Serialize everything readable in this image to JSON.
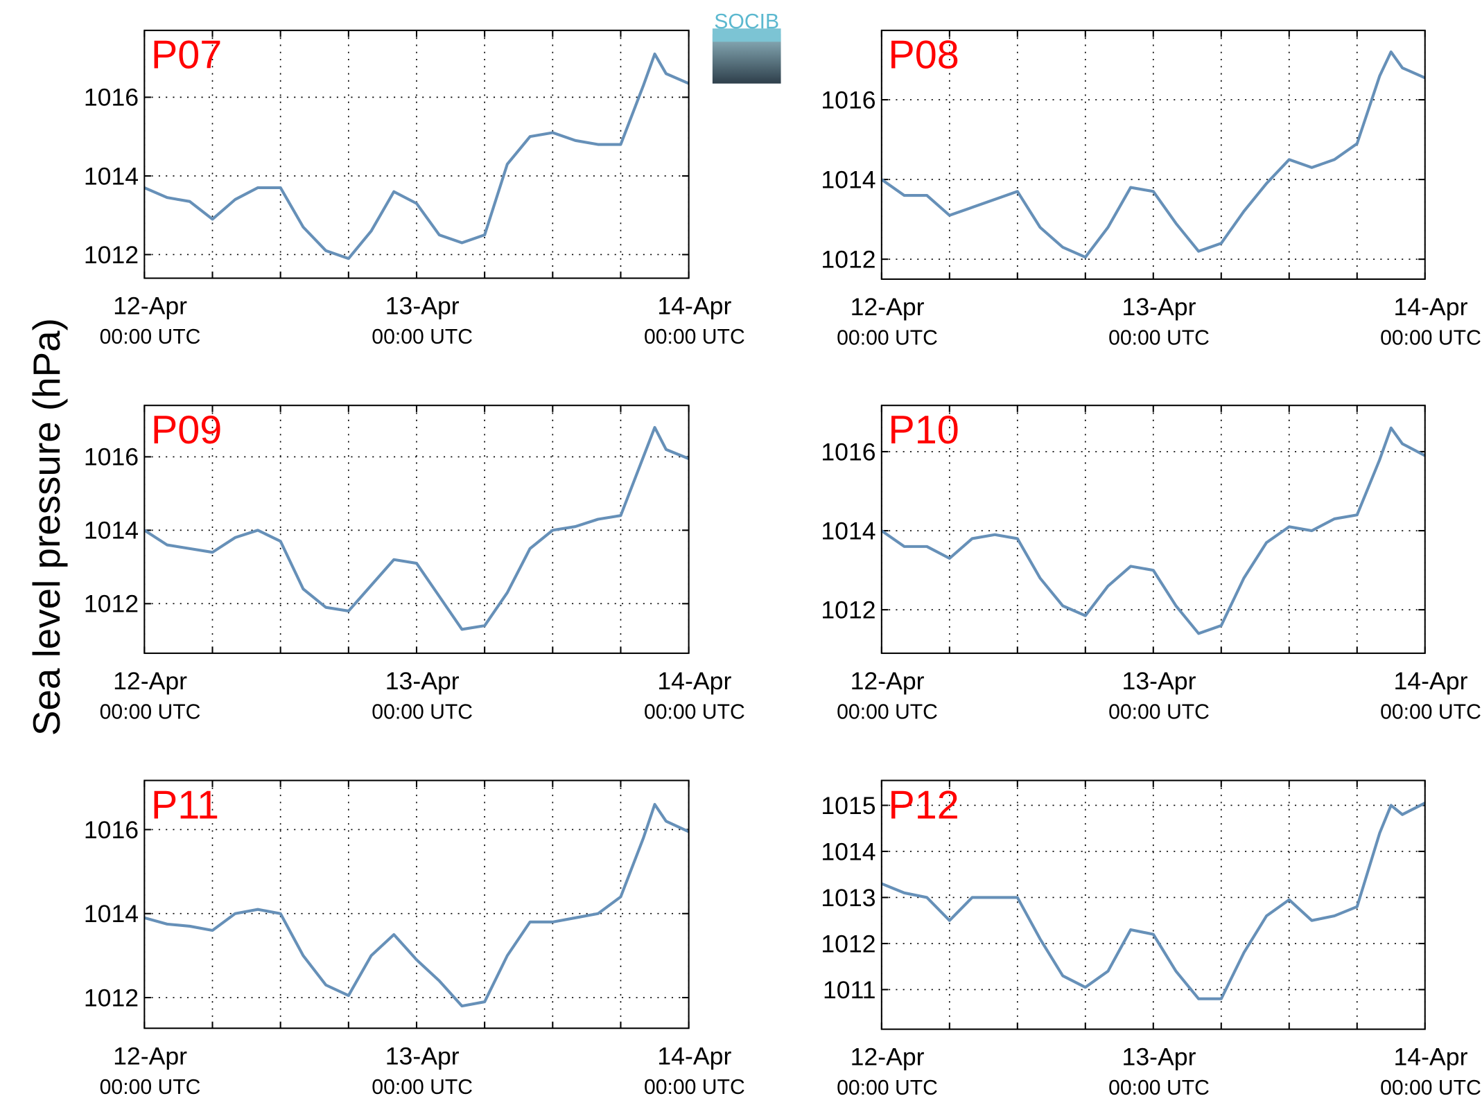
{
  "ylabel": "Sea level pressure (hPa)",
  "logo_text": "SOCIB",
  "chart_data": [
    {
      "type": "line",
      "title": "P07",
      "color": "#6690b8",
      "grid": true,
      "x": [
        "12-Apr 00:00",
        "12-Apr 02:00",
        "12-Apr 04:00",
        "12-Apr 06:00",
        "12-Apr 08:00",
        "12-Apr 10:00",
        "12-Apr 12:00",
        "12-Apr 14:00",
        "12-Apr 16:00",
        "12-Apr 18:00",
        "12-Apr 20:00",
        "12-Apr 22:00",
        "13-Apr 00:00",
        "13-Apr 02:00",
        "13-Apr 04:00",
        "13-Apr 06:00",
        "13-Apr 08:00",
        "13-Apr 10:00",
        "13-Apr 12:00",
        "13-Apr 14:00",
        "13-Apr 16:00",
        "13-Apr 18:00",
        "13-Apr 20:00",
        "13-Apr 21:00",
        "13-Apr 22:00",
        "14-Apr 00:00"
      ],
      "values": [
        1013.7,
        1013.45,
        1013.35,
        1012.9,
        1013.4,
        1013.7,
        1013.7,
        1012.7,
        1012.1,
        1011.9,
        1012.6,
        1013.6,
        1013.3,
        1012.5,
        1012.3,
        1012.5,
        1014.3,
        1015.0,
        1015.1,
        1014.9,
        1014.8,
        1014.8,
        1016.3,
        1017.1,
        1016.6,
        1016.35
      ],
      "xlim": [
        "12-Apr 00:00",
        "14-Apr 00:00"
      ],
      "xticks": [
        {
          "value": "12-Apr 00:00",
          "label": [
            "12-Apr",
            "00:00 UTC"
          ]
        },
        {
          "value": "13-Apr 00:00",
          "label": [
            "13-Apr",
            "00:00 UTC"
          ]
        },
        {
          "value": "14-Apr 00:00",
          "label": [
            "14-Apr",
            "00:00 UTC"
          ]
        }
      ],
      "x_minor_ticks": [
        "12-Apr 06:00",
        "12-Apr 12:00",
        "12-Apr 18:00",
        "13-Apr 06:00",
        "13-Apr 12:00",
        "13-Apr 18:00"
      ],
      "ylim": [
        1011.4,
        1017.7
      ],
      "yticks": [
        1012,
        1014,
        1016
      ]
    },
    {
      "type": "line",
      "title": "P08",
      "color": "#6690b8",
      "grid": true,
      "x": [
        "12-Apr 00:00",
        "12-Apr 02:00",
        "12-Apr 04:00",
        "12-Apr 06:00",
        "12-Apr 08:00",
        "12-Apr 10:00",
        "12-Apr 12:00",
        "12-Apr 14:00",
        "12-Apr 16:00",
        "12-Apr 18:00",
        "12-Apr 20:00",
        "12-Apr 22:00",
        "13-Apr 00:00",
        "13-Apr 02:00",
        "13-Apr 04:00",
        "13-Apr 06:00",
        "13-Apr 08:00",
        "13-Apr 10:00",
        "13-Apr 12:00",
        "13-Apr 14:00",
        "13-Apr 16:00",
        "13-Apr 18:00",
        "13-Apr 20:00",
        "13-Apr 21:00",
        "13-Apr 22:00",
        "14-Apr 00:00"
      ],
      "values": [
        1014.0,
        1013.6,
        1013.6,
        1013.1,
        1013.3,
        1013.5,
        1013.7,
        1012.8,
        1012.3,
        1012.05,
        1012.8,
        1013.8,
        1013.7,
        1012.9,
        1012.2,
        1012.4,
        1013.2,
        1013.9,
        1014.5,
        1014.3,
        1014.5,
        1014.9,
        1016.6,
        1017.2,
        1016.8,
        1016.55
      ],
      "xlim": [
        "12-Apr 00:00",
        "14-Apr 00:00"
      ],
      "xticks": [
        {
          "value": "12-Apr 00:00",
          "label": [
            "12-Apr",
            "00:00 UTC"
          ]
        },
        {
          "value": "13-Apr 00:00",
          "label": [
            "13-Apr",
            "00:00 UTC"
          ]
        },
        {
          "value": "14-Apr 00:00",
          "label": [
            "14-Apr",
            "00:00 UTC"
          ]
        }
      ],
      "x_minor_ticks": [
        "12-Apr 06:00",
        "12-Apr 12:00",
        "12-Apr 18:00",
        "13-Apr 06:00",
        "13-Apr 12:00",
        "13-Apr 18:00"
      ],
      "ylim": [
        1011.5,
        1017.74
      ],
      "yticks": [
        1012,
        1014,
        1016
      ]
    },
    {
      "type": "line",
      "title": "P09",
      "color": "#6690b8",
      "grid": true,
      "x": [
        "12-Apr 00:00",
        "12-Apr 02:00",
        "12-Apr 04:00",
        "12-Apr 06:00",
        "12-Apr 08:00",
        "12-Apr 10:00",
        "12-Apr 12:00",
        "12-Apr 14:00",
        "12-Apr 16:00",
        "12-Apr 18:00",
        "12-Apr 20:00",
        "12-Apr 22:00",
        "13-Apr 00:00",
        "13-Apr 02:00",
        "13-Apr 04:00",
        "13-Apr 06:00",
        "13-Apr 08:00",
        "13-Apr 10:00",
        "13-Apr 12:00",
        "13-Apr 14:00",
        "13-Apr 16:00",
        "13-Apr 18:00",
        "13-Apr 20:00",
        "13-Apr 21:00",
        "13-Apr 22:00",
        "14-Apr 00:00"
      ],
      "values": [
        1014.0,
        1013.6,
        1013.5,
        1013.4,
        1013.8,
        1014.0,
        1013.7,
        1012.4,
        1011.9,
        1011.8,
        1012.5,
        1013.2,
        1013.1,
        1012.2,
        1011.3,
        1011.4,
        1012.3,
        1013.5,
        1014.0,
        1014.1,
        1014.3,
        1014.4,
        1016.0,
        1016.8,
        1016.2,
        1015.95
      ],
      "xlim": [
        "12-Apr 00:00",
        "14-Apr 00:00"
      ],
      "xticks": [
        {
          "value": "12-Apr 00:00",
          "label": [
            "12-Apr",
            "00:00 UTC"
          ]
        },
        {
          "value": "13-Apr 00:00",
          "label": [
            "13-Apr",
            "00:00 UTC"
          ]
        },
        {
          "value": "14-Apr 00:00",
          "label": [
            "14-Apr",
            "00:00 UTC"
          ]
        }
      ],
      "x_minor_ticks": [
        "12-Apr 06:00",
        "12-Apr 12:00",
        "12-Apr 18:00",
        "13-Apr 06:00",
        "13-Apr 12:00",
        "13-Apr 18:00"
      ],
      "ylim": [
        1010.65,
        1017.4
      ],
      "yticks": [
        1012,
        1014,
        1016
      ]
    },
    {
      "type": "line",
      "title": "P10",
      "color": "#6690b8",
      "grid": true,
      "x": [
        "12-Apr 00:00",
        "12-Apr 02:00",
        "12-Apr 04:00",
        "12-Apr 06:00",
        "12-Apr 08:00",
        "12-Apr 10:00",
        "12-Apr 12:00",
        "12-Apr 14:00",
        "12-Apr 16:00",
        "12-Apr 18:00",
        "12-Apr 20:00",
        "12-Apr 22:00",
        "13-Apr 00:00",
        "13-Apr 02:00",
        "13-Apr 04:00",
        "13-Apr 06:00",
        "13-Apr 08:00",
        "13-Apr 10:00",
        "13-Apr 12:00",
        "13-Apr 14:00",
        "13-Apr 16:00",
        "13-Apr 18:00",
        "13-Apr 20:00",
        "13-Apr 21:00",
        "13-Apr 22:00",
        "14-Apr 00:00"
      ],
      "values": [
        1014.0,
        1013.6,
        1013.6,
        1013.3,
        1013.8,
        1013.9,
        1013.8,
        1012.8,
        1012.1,
        1011.85,
        1012.6,
        1013.1,
        1013.0,
        1012.1,
        1011.4,
        1011.6,
        1012.8,
        1013.7,
        1014.1,
        1014.0,
        1014.3,
        1014.4,
        1015.8,
        1016.6,
        1016.2,
        1015.9
      ],
      "xlim": [
        "12-Apr 00:00",
        "14-Apr 00:00"
      ],
      "xticks": [
        {
          "value": "12-Apr 00:00",
          "label": [
            "12-Apr",
            "00:00 UTC"
          ]
        },
        {
          "value": "13-Apr 00:00",
          "label": [
            "13-Apr",
            "00:00 UTC"
          ]
        },
        {
          "value": "14-Apr 00:00",
          "label": [
            "14-Apr",
            "00:00 UTC"
          ]
        }
      ],
      "x_minor_ticks": [
        "12-Apr 06:00",
        "12-Apr 12:00",
        "12-Apr 18:00",
        "13-Apr 06:00",
        "13-Apr 12:00",
        "13-Apr 18:00"
      ],
      "ylim": [
        1010.9,
        1017.17
      ],
      "yticks": [
        1012,
        1014,
        1016
      ]
    },
    {
      "type": "line",
      "title": "P11",
      "color": "#6690b8",
      "grid": true,
      "x": [
        "12-Apr 00:00",
        "12-Apr 02:00",
        "12-Apr 04:00",
        "12-Apr 06:00",
        "12-Apr 08:00",
        "12-Apr 10:00",
        "12-Apr 12:00",
        "12-Apr 14:00",
        "12-Apr 16:00",
        "12-Apr 18:00",
        "12-Apr 20:00",
        "12-Apr 22:00",
        "13-Apr 00:00",
        "13-Apr 02:00",
        "13-Apr 04:00",
        "13-Apr 06:00",
        "13-Apr 08:00",
        "13-Apr 10:00",
        "13-Apr 12:00",
        "13-Apr 14:00",
        "13-Apr 16:00",
        "13-Apr 18:00",
        "13-Apr 20:00",
        "13-Apr 21:00",
        "13-Apr 22:00",
        "14-Apr 00:00"
      ],
      "values": [
        1013.9,
        1013.75,
        1013.7,
        1013.6,
        1014.0,
        1014.1,
        1014.0,
        1013.0,
        1012.3,
        1012.05,
        1013.0,
        1013.5,
        1012.9,
        1012.4,
        1011.8,
        1011.9,
        1013.0,
        1013.8,
        1013.8,
        1013.9,
        1014.0,
        1014.4,
        1015.8,
        1016.6,
        1016.2,
        1015.95
      ],
      "xlim": [
        "12-Apr 00:00",
        "14-Apr 00:00"
      ],
      "xticks": [
        {
          "value": "12-Apr 00:00",
          "label": [
            "12-Apr",
            "00:00 UTC"
          ]
        },
        {
          "value": "13-Apr 00:00",
          "label": [
            "13-Apr",
            "00:00 UTC"
          ]
        },
        {
          "value": "14-Apr 00:00",
          "label": [
            "14-Apr",
            "00:00 UTC"
          ]
        }
      ],
      "x_minor_ticks": [
        "12-Apr 06:00",
        "12-Apr 12:00",
        "12-Apr 18:00",
        "13-Apr 06:00",
        "13-Apr 12:00",
        "13-Apr 18:00"
      ],
      "ylim": [
        1011.27,
        1017.17
      ],
      "yticks": [
        1012,
        1014,
        1016
      ]
    },
    {
      "type": "line",
      "title": "P12",
      "color": "#6690b8",
      "grid": true,
      "x": [
        "12-Apr 00:00",
        "12-Apr 02:00",
        "12-Apr 04:00",
        "12-Apr 06:00",
        "12-Apr 08:00",
        "12-Apr 10:00",
        "12-Apr 12:00",
        "12-Apr 14:00",
        "12-Apr 16:00",
        "12-Apr 18:00",
        "12-Apr 20:00",
        "12-Apr 22:00",
        "13-Apr 00:00",
        "13-Apr 02:00",
        "13-Apr 04:00",
        "13-Apr 06:00",
        "13-Apr 08:00",
        "13-Apr 10:00",
        "13-Apr 12:00",
        "13-Apr 14:00",
        "13-Apr 16:00",
        "13-Apr 18:00",
        "13-Apr 20:00",
        "13-Apr 21:00",
        "13-Apr 22:00",
        "14-Apr 00:00"
      ],
      "values": [
        1013.3,
        1013.1,
        1013.0,
        1012.5,
        1013.0,
        1013.0,
        1013.0,
        1012.1,
        1011.3,
        1011.05,
        1011.4,
        1012.3,
        1012.2,
        1011.4,
        1010.8,
        1010.8,
        1011.8,
        1012.6,
        1012.95,
        1012.5,
        1012.6,
        1012.8,
        1014.4,
        1015.0,
        1014.8,
        1015.05
      ],
      "xlim": [
        "12-Apr 00:00",
        "14-Apr 00:00"
      ],
      "xticks": [
        {
          "value": "12-Apr 00:00",
          "label": [
            "12-Apr",
            "00:00 UTC"
          ]
        },
        {
          "value": "13-Apr 00:00",
          "label": [
            "13-Apr",
            "00:00 UTC"
          ]
        },
        {
          "value": "14-Apr 00:00",
          "label": [
            "14-Apr",
            "00:00 UTC"
          ]
        }
      ],
      "x_minor_ticks": [
        "12-Apr 06:00",
        "12-Apr 12:00",
        "12-Apr 18:00",
        "13-Apr 06:00",
        "13-Apr 12:00",
        "13-Apr 18:00"
      ],
      "ylim": [
        1010.14,
        1015.54
      ],
      "yticks": [
        1011,
        1012,
        1013,
        1014,
        1015
      ]
    }
  ]
}
